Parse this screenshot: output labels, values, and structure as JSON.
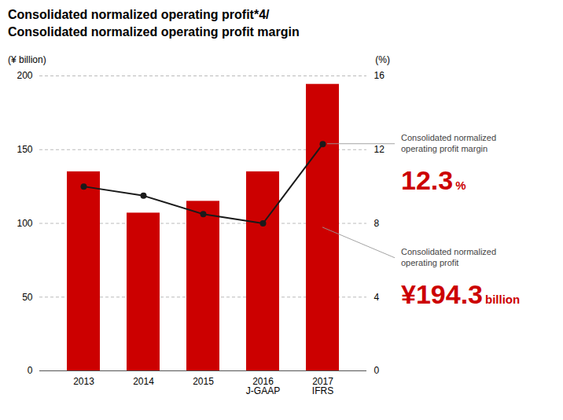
{
  "chart_data": {
    "type": "bar",
    "title": "Consolidated normalized operating profit*4/\nConsolidated normalized operating profit margin",
    "categories": [
      "2013",
      "2014",
      "2015",
      "2016\nJ-GAAP",
      "2017\nIFRS"
    ],
    "series": [
      {
        "name": "Consolidated normalized operating profit",
        "type": "bar",
        "color": "#cc0000",
        "values": [
          135.0,
          107.0,
          115.0,
          135.0,
          194.3
        ]
      },
      {
        "name": "Consolidated normalized operating profit margin",
        "type": "line",
        "axis": "y2",
        "color": "#1a1a1a",
        "marker": "o",
        "values": [
          10.0,
          9.5,
          8.5,
          8.0,
          12.3
        ]
      }
    ],
    "ylabel": "(¥ billion)",
    "y2label": "(%)",
    "ylim": [
      0,
      200
    ],
    "yticks": [
      0,
      50,
      100,
      150,
      200
    ],
    "y2lim": [
      0,
      16
    ],
    "y2ticks": [
      0,
      4,
      8,
      12,
      16
    ],
    "grid": true,
    "annotations": [
      {
        "text": "Consolidated normalized\noperating profit margin",
        "value": 12.3,
        "value_label": "12.3",
        "unit": "%",
        "axis": "y2",
        "color": "#cc0000"
      },
      {
        "text": "Consolidated normalized\noperating profit",
        "value": 194.3,
        "value_label": "¥194.3",
        "unit": "billion",
        "color": "#cc0000"
      }
    ]
  }
}
